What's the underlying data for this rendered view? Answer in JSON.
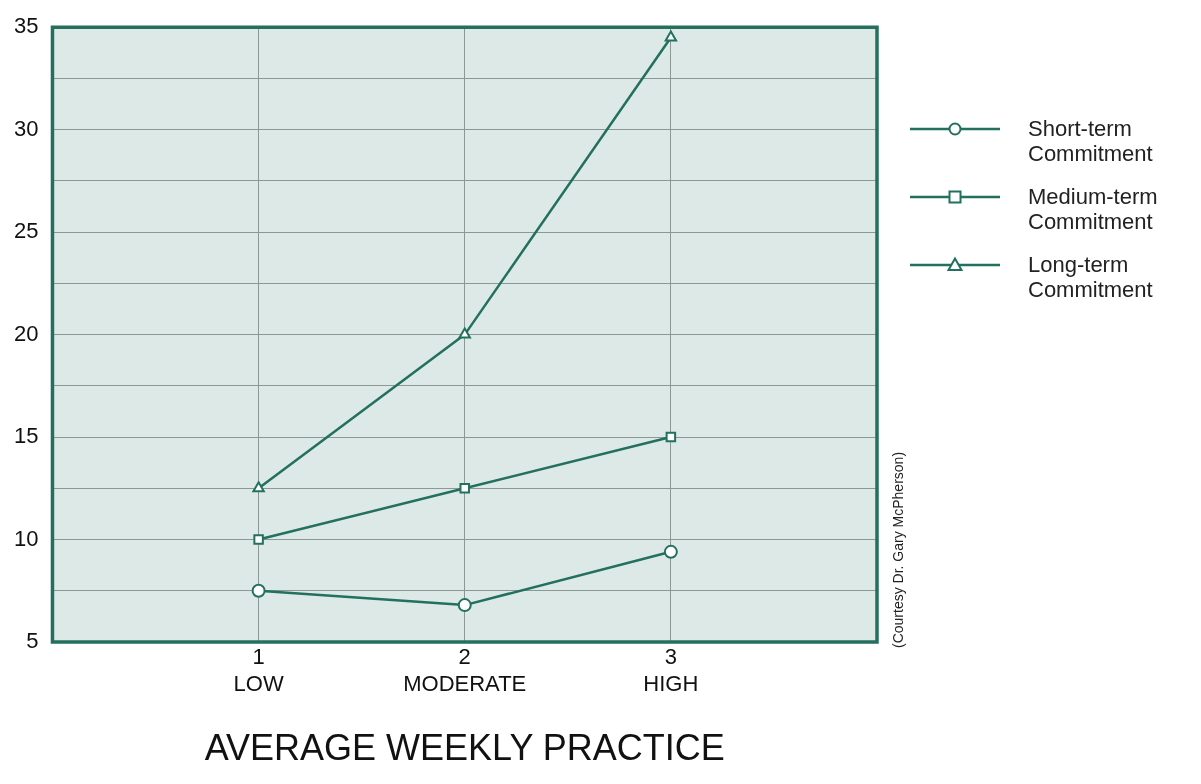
{
  "chart_data": {
    "type": "line",
    "xlabel": "AVERAGE WEEKLY PRACTICE",
    "x": [
      1,
      2,
      3
    ],
    "xlim": [
      0,
      4
    ],
    "xticks": [
      {
        "value": 1,
        "label": "1\nLOW"
      },
      {
        "value": 2,
        "label": "2\nMODERATE"
      },
      {
        "value": 3,
        "label": "3\nHIGH"
      }
    ],
    "ylim": [
      5,
      35
    ],
    "yticks": [
      5,
      {
        "value": 7.5,
        "label": null
      },
      10,
      {
        "value": 12.5,
        "label": null
      },
      15,
      {
        "value": 17.5,
        "label": null
      },
      20,
      {
        "value": 22.5,
        "label": null
      },
      25,
      {
        "value": 27.5,
        "label": null
      },
      30,
      {
        "value": 32.5,
        "label": null
      },
      35
    ],
    "series": [
      {
        "name": "Short-term Commitment",
        "color": "#23705f",
        "marker": "circle",
        "values": [
          7.5,
          6.8,
          9.4
        ]
      },
      {
        "name": "Medium-term Commitment",
        "color": "#23705f",
        "marker": "square",
        "values": [
          10,
          12.5,
          15
        ]
      },
      {
        "name": "Long-term Commitment",
        "color": "#23705f",
        "marker": "triangle",
        "values": [
          12.5,
          20,
          34.5
        ]
      }
    ],
    "grid": true,
    "legend": "right",
    "line_style": "solid",
    "annotations": [
      "(Courtesy Dr. Gary McPherson)"
    ]
  }
}
